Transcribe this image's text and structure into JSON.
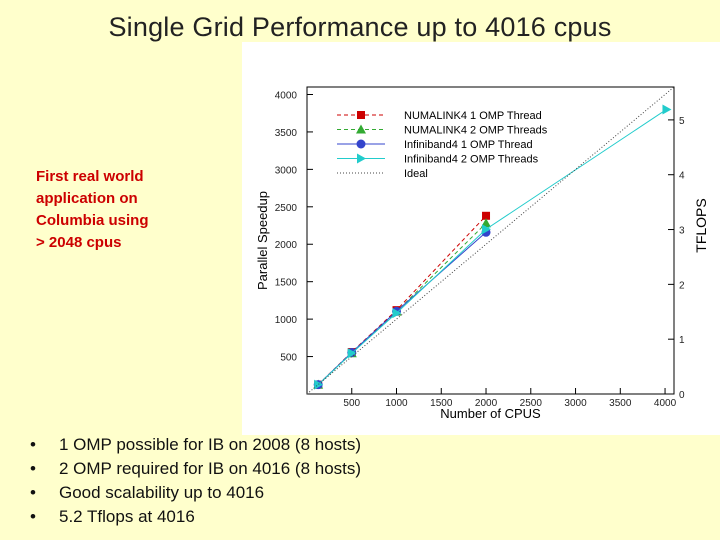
{
  "slide": {
    "title": "Single Grid Performance up to 4016 cpus",
    "annotation_lines": [
      "First real world",
      "application on",
      "Columbia using",
      "> 2048 cpus"
    ],
    "bullet_marker": "•",
    "bullets": [
      "1 OMP possible for IB on 2008 (8 hosts)",
      "2 OMP required for IB on 4016 (8 hosts)",
      "Good scalability up to 4016",
      "5.2 Tflops at 4016"
    ],
    "colors": {
      "background": "#ffffcc",
      "annotation": "#cc0000"
    }
  },
  "chart_data": {
    "type": "line",
    "xlabel": "Number of CPUS",
    "ylabel": "Parallel Speedup",
    "y2label": "TFLOPS",
    "xlim": [
      0,
      4100
    ],
    "ylim": [
      0,
      4100
    ],
    "y2lim": [
      0,
      5.6
    ],
    "x_ticks": [
      500,
      1000,
      1500,
      2000,
      2500,
      3000,
      3500,
      4000
    ],
    "x_tick_labels": [
      "500",
      "1000",
      "1500",
      "2000",
      "2500",
      "3000",
      "3500",
      "4000"
    ],
    "y_ticks": [
      500,
      1000,
      1500,
      2000,
      2500,
      3000,
      3500,
      4000
    ],
    "y_tick_labels": [
      "500",
      "1000",
      "1500",
      "2000",
      "2500",
      "3000",
      "3500",
      "4000"
    ],
    "y2_ticks": [
      0,
      1,
      2,
      3,
      4,
      5
    ],
    "y2_tick_labels": [
      "0",
      "1",
      "2",
      "3",
      "4",
      "5"
    ],
    "grid": false,
    "legend_position": "top-left",
    "series": [
      {
        "name": "NUMALINK4 1 OMP Thread",
        "color": "#cc0000",
        "marker": "square",
        "dash": "4,3",
        "x": [
          125,
          500,
          1000,
          2000
        ],
        "y": [
          125,
          560,
          1120,
          2380
        ]
      },
      {
        "name": "NUMALINK4 2 OMP Threads",
        "color": "#33aa33",
        "marker": "triangle",
        "dash": "4,3",
        "x": [
          125,
          500,
          1000,
          2000
        ],
        "y": [
          125,
          545,
          1100,
          2280
        ]
      },
      {
        "name": "Infiniband4 1 OMP Thread",
        "color": "#3344cc",
        "marker": "circle",
        "dash": "",
        "x": [
          125,
          500,
          1000,
          2000
        ],
        "y": [
          125,
          555,
          1105,
          2160
        ]
      },
      {
        "name": "Infiniband4 2 OMP Threads",
        "color": "#22cccc",
        "marker": "triangle-right",
        "dash": "",
        "x": [
          125,
          500,
          1000,
          2000,
          4016
        ],
        "y": [
          125,
          545,
          1080,
          2200,
          3800
        ]
      },
      {
        "name": "Ideal",
        "color": "#444444",
        "marker": "none",
        "dash": "1,2",
        "x": [
          0,
          4100
        ],
        "y": [
          0,
          4100
        ]
      }
    ]
  }
}
